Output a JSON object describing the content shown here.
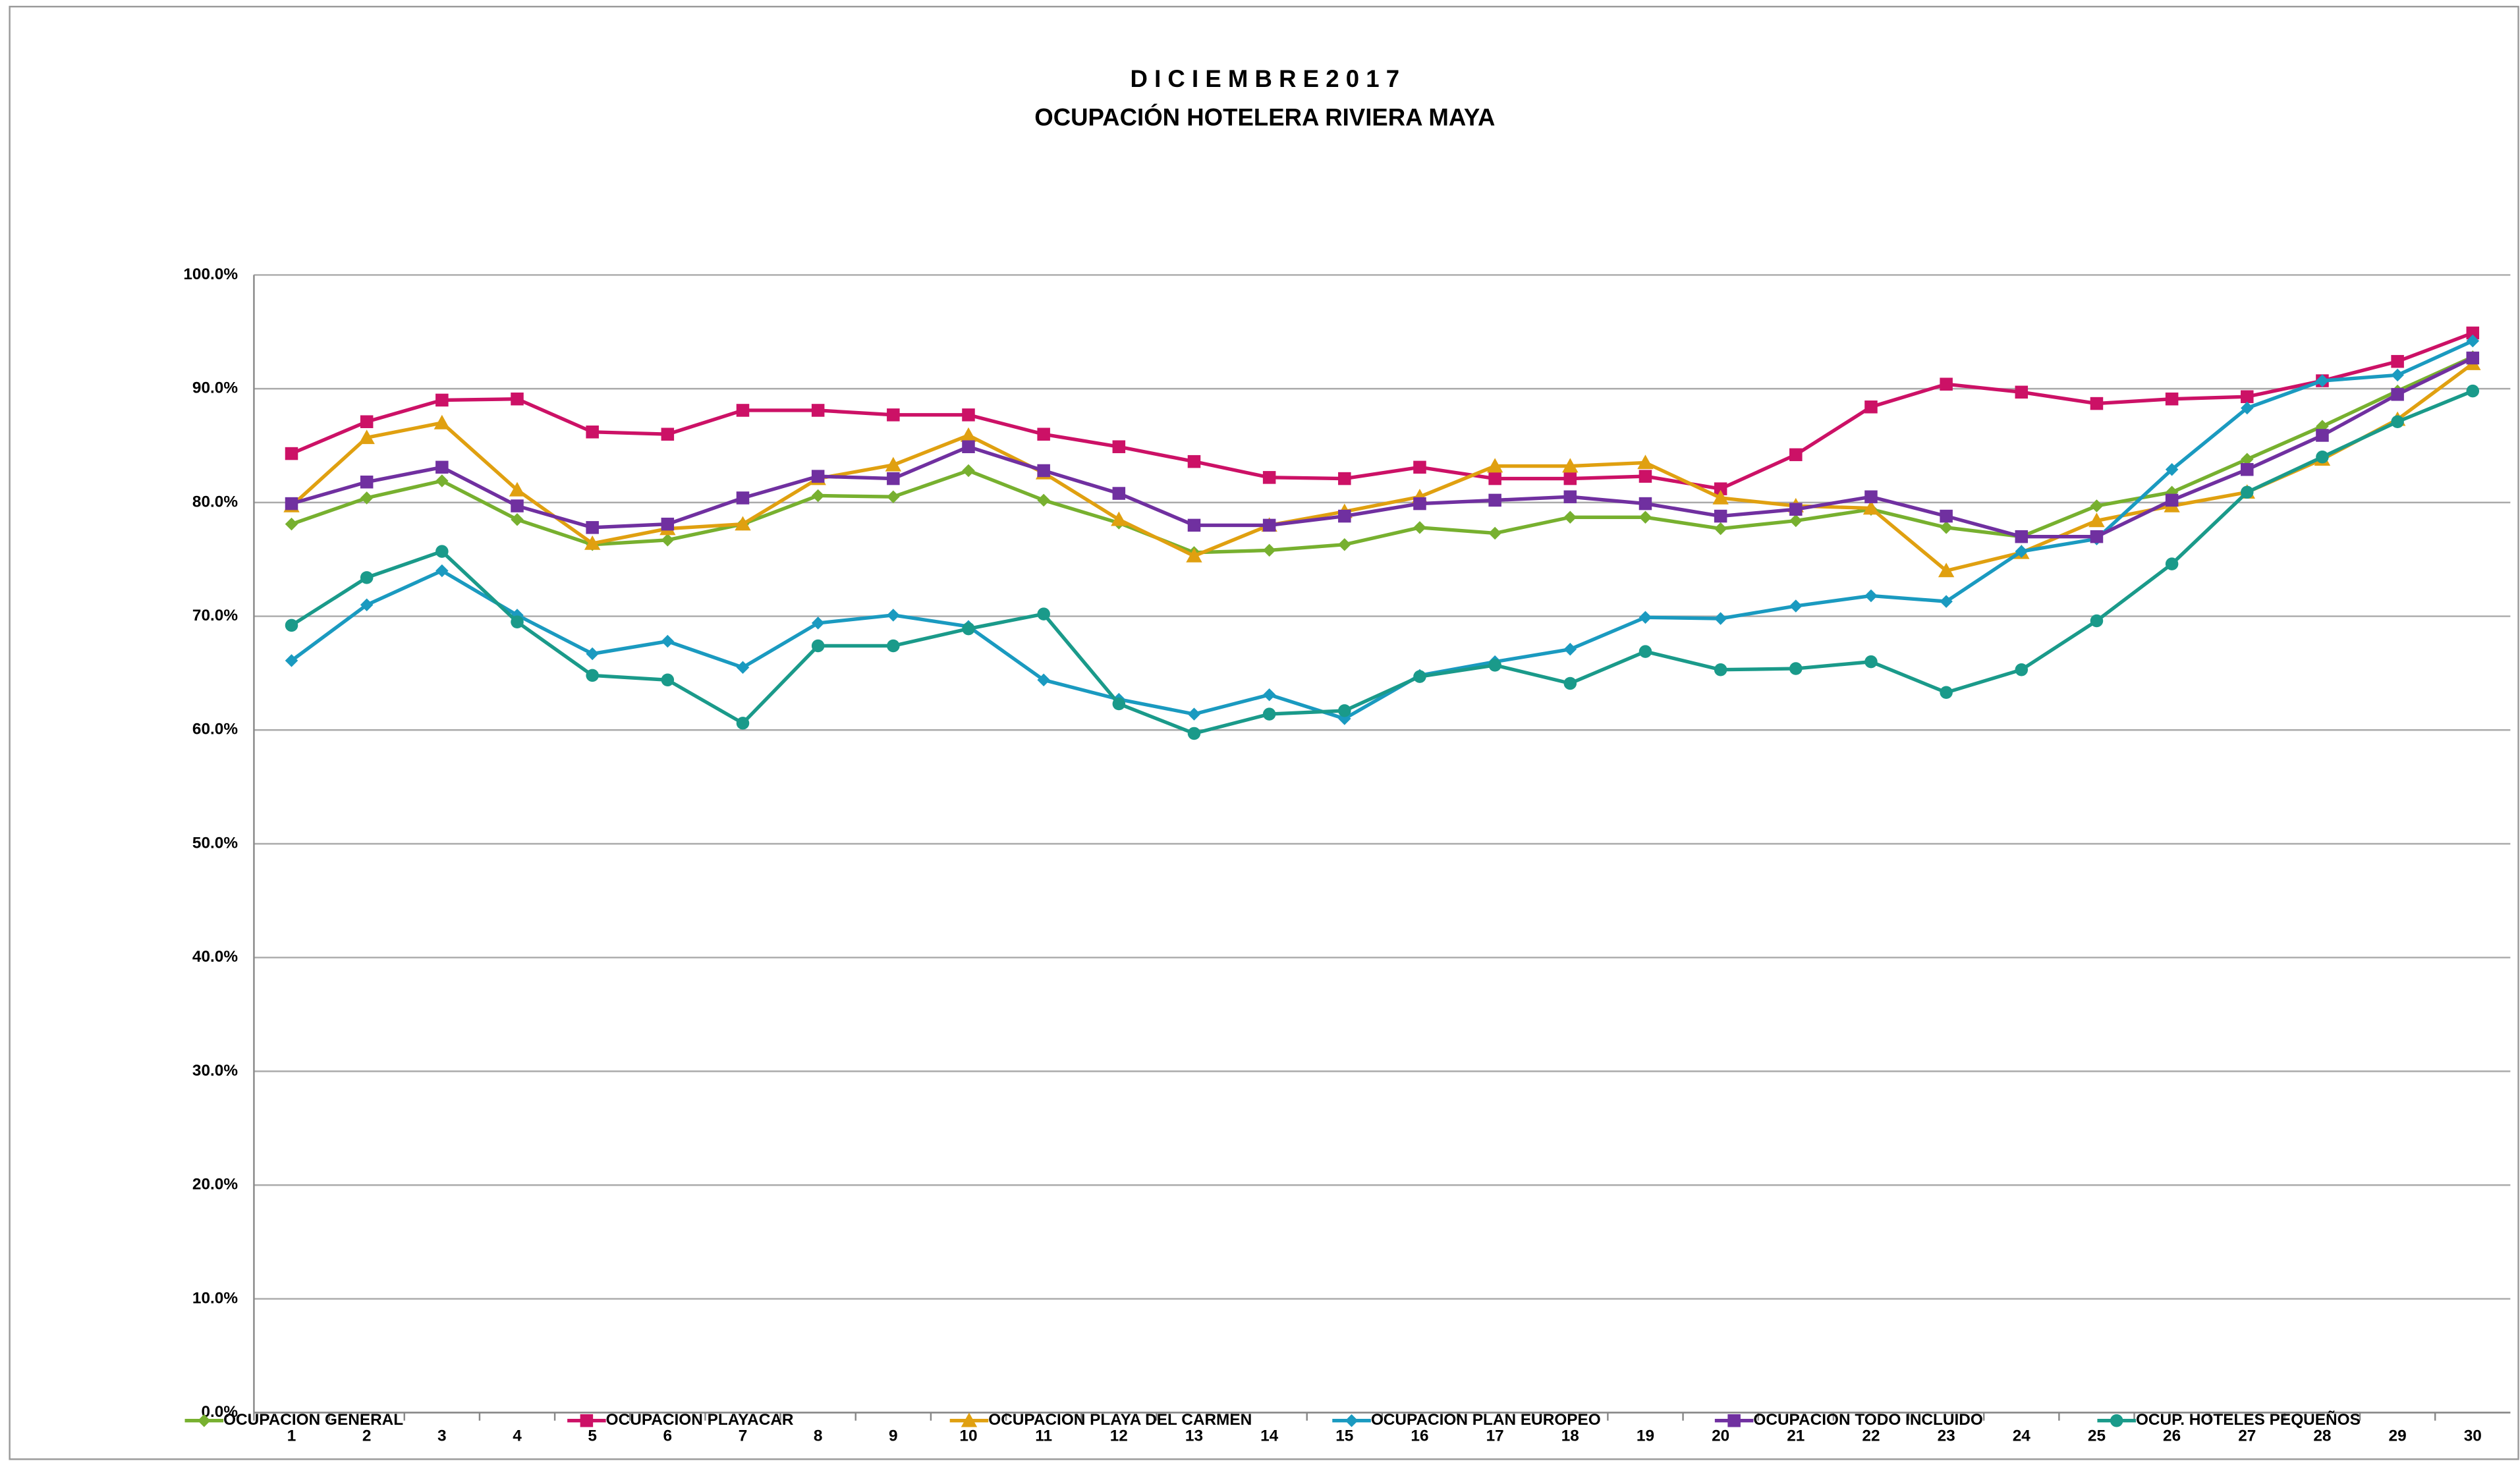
{
  "chart_data": {
    "type": "line",
    "title": "D I C I E M B R E   2 0 1 7",
    "subtitle": "OCUPACIÓN HOTELERA RIVIERA MAYA",
    "categories": [
      "1",
      "2",
      "3",
      "4",
      "5",
      "6",
      "7",
      "8",
      "9",
      "10",
      "11",
      "12",
      "13",
      "14",
      "15",
      "16",
      "17",
      "18",
      "19",
      "20",
      "21",
      "22",
      "23",
      "24",
      "25",
      "26",
      "27",
      "28",
      "29",
      "30"
    ],
    "ylim": [
      0,
      100
    ],
    "yticks": [
      {
        "value": 0,
        "label": "0.0%"
      },
      {
        "value": 10,
        "label": "10.0%"
      },
      {
        "value": 20,
        "label": "20.0%"
      },
      {
        "value": 30,
        "label": "30.0%"
      },
      {
        "value": 40,
        "label": "40.0%"
      },
      {
        "value": 50,
        "label": "50.0%"
      },
      {
        "value": 60,
        "label": "60.0%"
      },
      {
        "value": 70,
        "label": "70.0%"
      },
      {
        "value": 80,
        "label": "80.0%"
      },
      {
        "value": 90,
        "label": "90.0%"
      },
      {
        "value": 100,
        "label": "100.0%"
      }
    ],
    "grid": true,
    "legend": "bottom",
    "series": [
      {
        "name": "OCUPACION GENERAL",
        "color": "#77b02f",
        "marker": "diamond",
        "values": [
          78.1,
          80.4,
          81.9,
          78.5,
          76.3,
          76.7,
          78.1,
          80.6,
          80.5,
          82.8,
          80.2,
          78.2,
          75.6,
          75.8,
          76.3,
          77.8,
          77.3,
          78.7,
          78.7,
          77.7,
          78.4,
          79.4,
          77.8,
          77.0,
          79.7,
          80.9,
          83.8,
          86.7,
          89.8,
          92.8
        ]
      },
      {
        "name": "OCUPACION PLAYACAR",
        "color": "#cc1166",
        "marker": "square",
        "values": [
          84.3,
          87.1,
          89.0,
          89.1,
          86.2,
          86.0,
          88.1,
          88.1,
          87.7,
          87.7,
          86.0,
          84.9,
          83.6,
          82.2,
          82.1,
          83.1,
          82.1,
          82.1,
          82.3,
          81.2,
          84.2,
          88.4,
          90.4,
          89.7,
          88.7,
          89.1,
          89.3,
          90.7,
          92.4,
          94.9
        ]
      },
      {
        "name": "OCUPACION PLAYA DEL CARMEN",
        "color": "#e0a010",
        "marker": "triangle",
        "values": [
          79.7,
          85.7,
          87.0,
          81.1,
          76.4,
          77.7,
          78.1,
          82.1,
          83.3,
          85.9,
          82.6,
          78.5,
          75.3,
          78.0,
          79.2,
          80.5,
          83.2,
          83.2,
          83.5,
          80.4,
          79.7,
          79.5,
          74.0,
          75.6,
          78.4,
          79.7,
          80.9,
          83.8,
          87.3,
          92.2
        ]
      },
      {
        "name": "OCUPACION PLAN EUROPEO",
        "color": "#1a9ac0",
        "marker": "diamond",
        "values": [
          66.1,
          71.0,
          74.0,
          70.1,
          66.7,
          67.8,
          65.5,
          69.4,
          70.1,
          69.1,
          64.4,
          62.7,
          61.4,
          63.1,
          61.0,
          64.8,
          66.0,
          67.1,
          69.9,
          69.8,
          70.9,
          71.8,
          71.3,
          75.7,
          76.8,
          82.9,
          88.3,
          90.7,
          91.2,
          94.2
        ]
      },
      {
        "name": "OCUPACION TODO INCLUIDO",
        "color": "#7030a0",
        "marker": "square",
        "values": [
          79.9,
          81.8,
          83.1,
          79.7,
          77.8,
          78.1,
          80.4,
          82.3,
          82.1,
          84.9,
          82.8,
          80.8,
          78.0,
          78.0,
          78.8,
          79.9,
          80.2,
          80.5,
          79.9,
          78.8,
          79.4,
          80.5,
          78.8,
          77.0,
          77.0,
          80.2,
          82.9,
          85.9,
          89.5,
          92.7
        ]
      },
      {
        "name": "OCUP. HOTELES PEQUEÑOS",
        "color": "#1a9a8a",
        "marker": "circle",
        "values": [
          69.2,
          73.4,
          75.7,
          69.5,
          64.8,
          64.4,
          60.6,
          67.4,
          67.4,
          68.9,
          70.2,
          62.3,
          59.7,
          61.4,
          61.7,
          64.7,
          65.7,
          64.1,
          66.9,
          65.3,
          65.4,
          66.0,
          63.3,
          65.3,
          69.6,
          74.6,
          80.9,
          84.0,
          87.1,
          89.8
        ]
      }
    ]
  }
}
